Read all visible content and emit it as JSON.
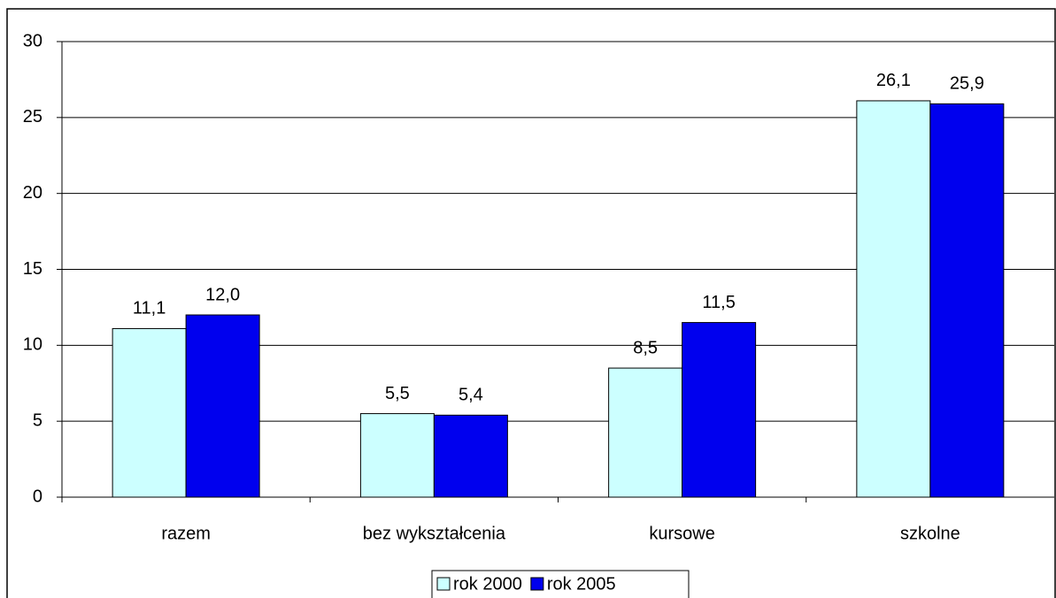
{
  "chart_data": {
    "type": "bar",
    "categories": [
      "razem",
      "bez wykształcenia",
      "kursowe",
      "szkolne"
    ],
    "series": [
      {
        "name": "rok 2000",
        "color": "#ccffff",
        "values": [
          11.1,
          5.5,
          8.5,
          26.1
        ],
        "value_labels": [
          "11,1",
          "5,5",
          "8,5",
          "26,1"
        ]
      },
      {
        "name": "rok 2005",
        "color": "#0000ee",
        "values": [
          12.0,
          5.4,
          11.5,
          25.9
        ],
        "value_labels": [
          "12,0",
          "5,4",
          "11,5",
          "25,9"
        ]
      }
    ],
    "ylim": [
      0,
      30
    ],
    "yticks": [
      0,
      5,
      10,
      15,
      20,
      25,
      30
    ],
    "grid": true,
    "legend": "bottom"
  }
}
